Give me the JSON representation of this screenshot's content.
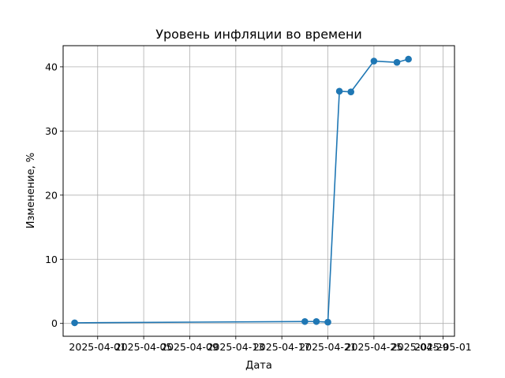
{
  "chart_data": {
    "type": "line",
    "title": "Уровень инфляции во времени",
    "xlabel": "Дата",
    "ylabel": "Изменение, %",
    "grid": true,
    "legend": "none",
    "x_type": "date",
    "xlim": [
      "2025-03-29",
      "2025-05-02"
    ],
    "ylim": [
      -2.0,
      43.3
    ],
    "x_ticks": [
      "2025-04-01",
      "2025-04-05",
      "2025-04-09",
      "2025-04-13",
      "2025-04-17",
      "2025-04-21",
      "2025-04-25",
      "2025-04-29",
      "2025-05-01"
    ],
    "y_ticks": [
      0,
      10,
      20,
      30,
      40
    ],
    "color": "#1f77b4",
    "series": [
      {
        "x": [
          "2025-03-30",
          "2025-04-19",
          "2025-04-20",
          "2025-04-21",
          "2025-04-22",
          "2025-04-23",
          "2025-04-25",
          "2025-04-27",
          "2025-04-28"
        ],
        "y": [
          0.1,
          0.3,
          0.3,
          0.2,
          36.2,
          36.1,
          40.9,
          40.7,
          41.2
        ]
      }
    ]
  }
}
